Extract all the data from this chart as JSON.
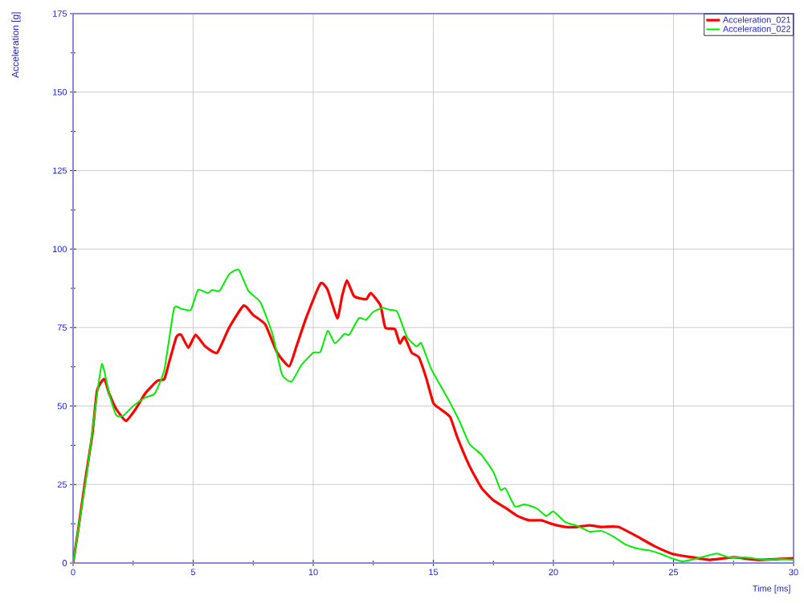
{
  "chart_data": {
    "type": "line",
    "xlabel": "Time [ms]",
    "ylabel": "Acceleration [g]",
    "xlim": [
      0,
      30
    ],
    "ylim": [
      0,
      175
    ],
    "xticks": [
      0,
      {
        "value": 2.5,
        "label": null
      },
      5,
      {
        "value": 7.5,
        "label": null
      },
      10,
      {
        "value": 12.5,
        "label": null
      },
      15,
      {
        "value": 17.5,
        "label": null
      },
      20,
      {
        "value": 22.5,
        "label": null
      },
      25,
      {
        "value": 27.5,
        "label": null
      },
      30
    ],
    "yticks": [
      0,
      {
        "value": 12.5,
        "label": null
      },
      25,
      {
        "value": 37.5,
        "label": null
      },
      50,
      {
        "value": 62.5,
        "label": null
      },
      75,
      {
        "value": 87.5,
        "label": null
      },
      100,
      {
        "value": 112.5,
        "label": null
      },
      125,
      {
        "value": 137.5,
        "label": null
      },
      150,
      {
        "value": 162.5,
        "label": null
      },
      175
    ],
    "grid": true,
    "legend": "top right",
    "marker": "none",
    "line_style": "solid",
    "series": [
      {
        "name": "Acceleration_021",
        "color": "#ff0000",
        "x": [
          0,
          0.2,
          0.5,
          0.8,
          1.0,
          1.3,
          1.5,
          1.8,
          2.2,
          2.6,
          3.0,
          3.5,
          3.8,
          4.0,
          4.3,
          4.5,
          4.8,
          5.1,
          5.5,
          6.0,
          6.5,
          7.1,
          7.5,
          8.0,
          8.5,
          9.0,
          9.3,
          9.7,
          10.3,
          10.6,
          11.0,
          11.2,
          11.4,
          11.7,
          12.2,
          12.4,
          12.8,
          13.0,
          13.4,
          13.6,
          13.8,
          14.1,
          14.4,
          14.7,
          15.0,
          15.3,
          15.7,
          16.0,
          16.5,
          17.0,
          17.5,
          18.0,
          18.5,
          19.0,
          19.5,
          20.0,
          20.5,
          21.0,
          21.5,
          22.0,
          22.7,
          23.5,
          24.2,
          25.0,
          25.8,
          26.5,
          27.5,
          28.5,
          30
        ],
        "values": [
          0,
          10,
          26,
          41,
          55,
          58.6,
          54,
          49,
          45.3,
          49,
          54,
          58,
          58.6,
          64,
          72,
          72.7,
          68.6,
          72.7,
          69,
          67,
          75,
          82,
          79,
          76,
          67,
          62.7,
          69,
          78,
          89,
          87,
          78,
          85,
          90,
          85,
          84,
          86,
          82,
          75,
          74.5,
          70,
          72,
          67,
          65.5,
          59,
          51,
          49,
          46.5,
          40,
          31,
          24,
          20,
          17.6,
          15,
          13.6,
          13.6,
          12.3,
          11.5,
          11.5,
          12,
          11.5,
          11.5,
          8.4,
          5.4,
          2.8,
          1.8,
          1,
          1.8,
          1,
          1.5
        ]
      },
      {
        "name": "Acceleration_022",
        "color": "#00ee00",
        "x": [
          0,
          0.3,
          0.6,
          0.9,
          1.2,
          1.5,
          1.8,
          2.1,
          2.5,
          3.0,
          3.4,
          3.8,
          4.2,
          4.5,
          4.9,
          5.2,
          5.6,
          5.8,
          6.1,
          6.5,
          6.9,
          7.3,
          7.8,
          8.3,
          8.7,
          9.1,
          9.5,
          10.0,
          10.3,
          10.6,
          10.9,
          11.3,
          11.5,
          11.9,
          12.2,
          12.5,
          12.9,
          13.2,
          13.5,
          13.9,
          14.3,
          14.5,
          14.9,
          15.3,
          15.7,
          16.1,
          16.5,
          17.0,
          17.5,
          17.8,
          18.0,
          18.4,
          18.8,
          19.3,
          19.7,
          20.0,
          20.5,
          21.0,
          21.5,
          22.0,
          22.5,
          23.0,
          23.5,
          24.0,
          24.5,
          25.0,
          25.4,
          26.0,
          26.8,
          27.3,
          28.0,
          28.8,
          29.5,
          30
        ],
        "values": [
          0,
          15,
          30,
          48,
          63.4,
          54,
          47,
          47,
          50,
          52.7,
          54,
          61.6,
          81,
          81,
          80.6,
          87,
          86,
          87,
          86.7,
          92,
          93.4,
          86.7,
          83,
          73,
          60,
          57.8,
          63,
          67,
          67.3,
          74,
          70,
          73,
          72.7,
          78,
          77.5,
          80,
          81.3,
          80.6,
          80,
          72,
          69,
          70,
          62,
          56.5,
          51,
          45,
          38,
          34.5,
          29,
          23.3,
          23.8,
          18,
          18.7,
          17.4,
          15,
          16.4,
          13,
          11.8,
          10,
          10.2,
          8.4,
          5.9,
          4.6,
          4,
          2.8,
          1.3,
          0.5,
          1.5,
          3,
          1.8,
          1.8,
          1,
          1.3,
          1
        ]
      }
    ]
  }
}
